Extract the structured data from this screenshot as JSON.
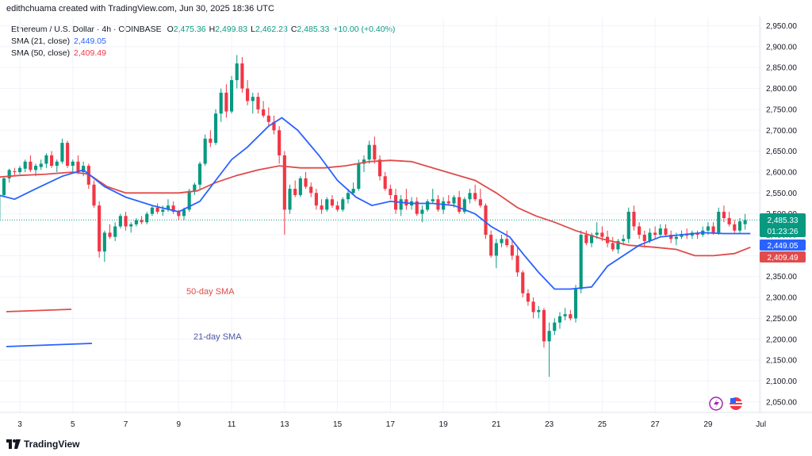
{
  "header": {
    "attribution": "edithchuama created with TradingView.com, Jun 30, 2025 18:36 UTC"
  },
  "legend": {
    "symbol": "Ethereum / U.S. Dollar · 4h · COINBASE",
    "ohlc": [
      {
        "label": "O",
        "value": "2,475.36"
      },
      {
        "label": "H",
        "value": "2,499.83"
      },
      {
        "label": "L",
        "value": "2,462.23"
      },
      {
        "label": "C",
        "value": "2,485.33"
      }
    ],
    "change": "+10.00 (+0.40%)",
    "sma21": {
      "label": "SMA (21, close)",
      "value": "2,449.05"
    },
    "sma50": {
      "label": "SMA (50, close)",
      "value": "2,409.49"
    }
  },
  "annotations": {
    "sma50_text": "50-day SMA",
    "sma21_text": "21-day SMA"
  },
  "price_tags": {
    "last_price": "2,485.33",
    "countdown": "01:23:26",
    "sma21": "2,449.05",
    "sma50": "2,409.49"
  },
  "footer": {
    "brand": "TradingView"
  },
  "colors": {
    "up": "#089981",
    "down": "#f23645",
    "sma21": "#2962ff",
    "sma50": "#e04b4b"
  },
  "chart_data": {
    "type": "candlestick",
    "title": "Ethereum / U.S. Dollar · 4h · COINBASE",
    "y_ticks": [
      "2,950.00",
      "2,900.00",
      "2,850.00",
      "2,800.00",
      "2,750.00",
      "2,700.00",
      "2,650.00",
      "2,600.00",
      "2,550.00",
      "2,500.00",
      "2,450.00",
      "2,400.00",
      "2,350.00",
      "2,300.00",
      "2,250.00",
      "2,200.00",
      "2,150.00",
      "2,100.00",
      "2,050.00"
    ],
    "ylim": [
      2025,
      2970
    ],
    "x_ticks": [
      "3",
      "5",
      "7",
      "9",
      "11",
      "13",
      "15",
      "17",
      "19",
      "21",
      "23",
      "25",
      "27",
      "29",
      "Jul"
    ],
    "x_tick_days": [
      3,
      5,
      7,
      9,
      11,
      13,
      15,
      17,
      19,
      21,
      23,
      25,
      27,
      29,
      31
    ],
    "x_range_days": [
      2.25,
      30.95
    ],
    "last_price": 2485.33,
    "sma21_anchors": [
      [
        2.2,
        2545
      ],
      [
        2.8,
        2535
      ],
      [
        3.6,
        2560
      ],
      [
        4.6,
        2590
      ],
      [
        5.4,
        2605
      ],
      [
        6.2,
        2565
      ],
      [
        7,
        2540
      ],
      [
        8,
        2520
      ],
      [
        9,
        2505
      ],
      [
        9.8,
        2530
      ],
      [
        10.4,
        2580
      ],
      [
        11,
        2630
      ],
      [
        11.6,
        2660
      ],
      [
        12.4,
        2710
      ],
      [
        12.9,
        2730
      ],
      [
        13.5,
        2700
      ],
      [
        14.3,
        2640
      ],
      [
        15,
        2580
      ],
      [
        15.7,
        2540
      ],
      [
        16.3,
        2520
      ],
      [
        17,
        2530
      ],
      [
        17.8,
        2525
      ],
      [
        18.6,
        2525
      ],
      [
        19.4,
        2520
      ],
      [
        20.2,
        2500
      ],
      [
        20.8,
        2470
      ],
      [
        21.5,
        2445
      ],
      [
        22,
        2405
      ],
      [
        22.6,
        2360
      ],
      [
        23.2,
        2320
      ],
      [
        23.8,
        2320
      ],
      [
        24.6,
        2325
      ],
      [
        25.2,
        2375
      ],
      [
        25.8,
        2400
      ],
      [
        26.4,
        2425
      ],
      [
        27.2,
        2445
      ],
      [
        28,
        2450
      ],
      [
        28.8,
        2455
      ],
      [
        29.6,
        2453
      ],
      [
        30.3,
        2453
      ],
      [
        30.6,
        2453
      ]
    ],
    "sma50_anchors": [
      [
        2.2,
        2588
      ],
      [
        3,
        2592
      ],
      [
        4,
        2595
      ],
      [
        5,
        2600
      ],
      [
        5.6,
        2595
      ],
      [
        6.3,
        2565
      ],
      [
        7,
        2550
      ],
      [
        8,
        2550
      ],
      [
        9,
        2550
      ],
      [
        9.7,
        2555
      ],
      [
        10.4,
        2575
      ],
      [
        11.2,
        2592
      ],
      [
        12,
        2605
      ],
      [
        12.8,
        2615
      ],
      [
        13.6,
        2610
      ],
      [
        14.5,
        2610
      ],
      [
        15.3,
        2615
      ],
      [
        16.2,
        2625
      ],
      [
        17,
        2628
      ],
      [
        17.8,
        2625
      ],
      [
        18.6,
        2610
      ],
      [
        19.4,
        2595
      ],
      [
        20.2,
        2580
      ],
      [
        21,
        2550
      ],
      [
        21.8,
        2515
      ],
      [
        22.5,
        2495
      ],
      [
        23.2,
        2480
      ],
      [
        24,
        2460
      ],
      [
        25,
        2440
      ],
      [
        26,
        2425
      ],
      [
        27,
        2420
      ],
      [
        27.8,
        2415
      ],
      [
        28.5,
        2400
      ],
      [
        29.2,
        2400
      ],
      [
        30,
        2405
      ],
      [
        30.6,
        2420
      ]
    ],
    "candles": [
      [
        2.2,
        2488,
        2548,
        2480,
        2545
      ],
      [
        2.4,
        2545,
        2590,
        2540,
        2585
      ],
      [
        2.6,
        2585,
        2608,
        2575,
        2605
      ],
      [
        2.8,
        2602,
        2610,
        2590,
        2600
      ],
      [
        3,
        2600,
        2615,
        2595,
        2610
      ],
      [
        3.2,
        2608,
        2630,
        2600,
        2625
      ],
      [
        3.4,
        2625,
        2640,
        2600,
        2605
      ],
      [
        3.6,
        2605,
        2620,
        2590,
        2615
      ],
      [
        3.8,
        2612,
        2630,
        2605,
        2620
      ],
      [
        4,
        2620,
        2645,
        2610,
        2640
      ],
      [
        4.2,
        2640,
        2650,
        2610,
        2615
      ],
      [
        4.4,
        2615,
        2630,
        2600,
        2625
      ],
      [
        4.6,
        2625,
        2680,
        2620,
        2670
      ],
      [
        4.8,
        2670,
        2675,
        2610,
        2615
      ],
      [
        5,
        2615,
        2630,
        2600,
        2625
      ],
      [
        5.2,
        2625,
        2640,
        2595,
        2600
      ],
      [
        5.4,
        2600,
        2625,
        2590,
        2615
      ],
      [
        5.6,
        2615,
        2620,
        2560,
        2570
      ],
      [
        5.8,
        2570,
        2580,
        2515,
        2520
      ],
      [
        6,
        2520,
        2530,
        2395,
        2410
      ],
      [
        6.2,
        2410,
        2460,
        2385,
        2455
      ],
      [
        6.4,
        2455,
        2475,
        2440,
        2445
      ],
      [
        6.6,
        2445,
        2480,
        2435,
        2470
      ],
      [
        6.8,
        2470,
        2500,
        2465,
        2495
      ],
      [
        7,
        2495,
        2505,
        2460,
        2470
      ],
      [
        7.2,
        2470,
        2480,
        2455,
        2475
      ],
      [
        7.4,
        2475,
        2490,
        2470,
        2485
      ],
      [
        7.6,
        2485,
        2495,
        2475,
        2480
      ],
      [
        7.8,
        2480,
        2505,
        2475,
        2500
      ],
      [
        8,
        2500,
        2520,
        2495,
        2515
      ],
      [
        8.2,
        2515,
        2525,
        2500,
        2505
      ],
      [
        8.4,
        2505,
        2520,
        2495,
        2510
      ],
      [
        8.6,
        2510,
        2535,
        2505,
        2520
      ],
      [
        8.8,
        2520,
        2530,
        2500,
        2505
      ],
      [
        9,
        2505,
        2510,
        2485,
        2495
      ],
      [
        9.2,
        2495,
        2515,
        2485,
        2510
      ],
      [
        9.4,
        2510,
        2560,
        2505,
        2555
      ],
      [
        9.6,
        2555,
        2575,
        2545,
        2570
      ],
      [
        9.8,
        2570,
        2625,
        2560,
        2620
      ],
      [
        10,
        2620,
        2690,
        2615,
        2680
      ],
      [
        10.2,
        2680,
        2700,
        2660,
        2670
      ],
      [
        10.4,
        2670,
        2750,
        2665,
        2740
      ],
      [
        10.6,
        2740,
        2800,
        2720,
        2790
      ],
      [
        10.8,
        2790,
        2810,
        2730,
        2745
      ],
      [
        11,
        2745,
        2830,
        2740,
        2820
      ],
      [
        11.2,
        2820,
        2880,
        2800,
        2860
      ],
      [
        11.4,
        2860,
        2875,
        2790,
        2800
      ],
      [
        11.6,
        2800,
        2820,
        2760,
        2770
      ],
      [
        11.8,
        2770,
        2790,
        2740,
        2780
      ],
      [
        12,
        2780,
        2790,
        2740,
        2750
      ],
      [
        12.2,
        2750,
        2770,
        2730,
        2735
      ],
      [
        12.4,
        2735,
        2755,
        2710,
        2720
      ],
      [
        12.6,
        2720,
        2735,
        2690,
        2700
      ],
      [
        12.8,
        2700,
        2710,
        2620,
        2640
      ],
      [
        13,
        2640,
        2650,
        2450,
        2510
      ],
      [
        13.2,
        2510,
        2570,
        2500,
        2560
      ],
      [
        13.4,
        2560,
        2580,
        2540,
        2545
      ],
      [
        13.6,
        2545,
        2590,
        2540,
        2585
      ],
      [
        13.8,
        2585,
        2600,
        2560,
        2565
      ],
      [
        14,
        2565,
        2575,
        2540,
        2550
      ],
      [
        14.2,
        2550,
        2560,
        2510,
        2520
      ],
      [
        14.4,
        2520,
        2535,
        2500,
        2510
      ],
      [
        14.6,
        2510,
        2540,
        2505,
        2535
      ],
      [
        14.8,
        2535,
        2545,
        2515,
        2520
      ],
      [
        15,
        2520,
        2530,
        2505,
        2510
      ],
      [
        15.2,
        2510,
        2540,
        2505,
        2535
      ],
      [
        15.4,
        2535,
        2560,
        2525,
        2550
      ],
      [
        15.6,
        2550,
        2575,
        2545,
        2560
      ],
      [
        15.8,
        2560,
        2630,
        2555,
        2620
      ],
      [
        16,
        2620,
        2640,
        2600,
        2630
      ],
      [
        16.2,
        2630,
        2675,
        2620,
        2665
      ],
      [
        16.4,
        2665,
        2685,
        2620,
        2630
      ],
      [
        16.6,
        2630,
        2640,
        2580,
        2590
      ],
      [
        16.8,
        2590,
        2600,
        2555,
        2560
      ],
      [
        17,
        2560,
        2570,
        2535,
        2545
      ],
      [
        17.2,
        2545,
        2560,
        2500,
        2510
      ],
      [
        17.4,
        2510,
        2545,
        2495,
        2535
      ],
      [
        17.6,
        2535,
        2560,
        2510,
        2520
      ],
      [
        17.8,
        2520,
        2540,
        2510,
        2530
      ],
      [
        18,
        2530,
        2540,
        2495,
        2500
      ],
      [
        18.2,
        2500,
        2520,
        2480,
        2510
      ],
      [
        18.4,
        2510,
        2535,
        2505,
        2530
      ],
      [
        18.6,
        2530,
        2560,
        2525,
        2535
      ],
      [
        18.8,
        2535,
        2545,
        2505,
        2510
      ],
      [
        19,
        2510,
        2540,
        2500,
        2530
      ],
      [
        19.2,
        2530,
        2545,
        2520,
        2525
      ],
      [
        19.4,
        2525,
        2545,
        2515,
        2540
      ],
      [
        19.6,
        2540,
        2555,
        2500,
        2505
      ],
      [
        19.8,
        2505,
        2540,
        2500,
        2535
      ],
      [
        20,
        2535,
        2560,
        2525,
        2550
      ],
      [
        20.2,
        2550,
        2570,
        2530,
        2535
      ],
      [
        20.4,
        2535,
        2560,
        2515,
        2520
      ],
      [
        20.6,
        2520,
        2525,
        2440,
        2450
      ],
      [
        20.8,
        2450,
        2460,
        2395,
        2400
      ],
      [
        21,
        2400,
        2440,
        2370,
        2430
      ],
      [
        21.2,
        2430,
        2450,
        2420,
        2440
      ],
      [
        21.4,
        2440,
        2460,
        2420,
        2425
      ],
      [
        21.6,
        2425,
        2440,
        2390,
        2400
      ],
      [
        21.8,
        2400,
        2420,
        2350,
        2360
      ],
      [
        22,
        2360,
        2365,
        2300,
        2310
      ],
      [
        22.2,
        2310,
        2320,
        2280,
        2290
      ],
      [
        22.4,
        2290,
        2300,
        2250,
        2265
      ],
      [
        22.6,
        2265,
        2280,
        2250,
        2270
      ],
      [
        22.8,
        2270,
        2275,
        2180,
        2195
      ],
      [
        23,
        2195,
        2240,
        2110,
        2220
      ],
      [
        23.2,
        2220,
        2250,
        2210,
        2240
      ],
      [
        23.4,
        2240,
        2265,
        2225,
        2255
      ],
      [
        23.6,
        2255,
        2275,
        2245,
        2260
      ],
      [
        23.8,
        2260,
        2270,
        2245,
        2250
      ],
      [
        24,
        2250,
        2330,
        2240,
        2320
      ],
      [
        24.2,
        2320,
        2460,
        2310,
        2450
      ],
      [
        24.4,
        2450,
        2460,
        2425,
        2430
      ],
      [
        24.6,
        2430,
        2455,
        2420,
        2450
      ],
      [
        24.8,
        2450,
        2480,
        2440,
        2455
      ],
      [
        25,
        2455,
        2470,
        2435,
        2445
      ],
      [
        25.2,
        2445,
        2460,
        2420,
        2430
      ],
      [
        25.4,
        2430,
        2445,
        2410,
        2415
      ],
      [
        25.6,
        2415,
        2440,
        2405,
        2435
      ],
      [
        25.8,
        2435,
        2450,
        2425,
        2440
      ],
      [
        26,
        2440,
        2515,
        2430,
        2505
      ],
      [
        26.2,
        2505,
        2520,
        2460,
        2470
      ],
      [
        26.4,
        2470,
        2480,
        2440,
        2450
      ],
      [
        26.6,
        2450,
        2460,
        2420,
        2435
      ],
      [
        26.8,
        2435,
        2465,
        2430,
        2455
      ],
      [
        27,
        2455,
        2470,
        2440,
        2450
      ],
      [
        27.2,
        2450,
        2475,
        2445,
        2465
      ],
      [
        27.4,
        2465,
        2475,
        2445,
        2450
      ],
      [
        27.6,
        2450,
        2460,
        2430,
        2440
      ],
      [
        27.8,
        2440,
        2455,
        2425,
        2445
      ],
      [
        28,
        2445,
        2460,
        2440,
        2452
      ],
      [
        28.2,
        2452,
        2465,
        2440,
        2448
      ],
      [
        28.4,
        2448,
        2460,
        2440,
        2455
      ],
      [
        28.6,
        2455,
        2460,
        2440,
        2450
      ],
      [
        28.8,
        2450,
        2470,
        2445,
        2460
      ],
      [
        29,
        2460,
        2480,
        2450,
        2470
      ],
      [
        29.2,
        2470,
        2480,
        2450,
        2455
      ],
      [
        29.4,
        2455,
        2515,
        2450,
        2505
      ],
      [
        29.6,
        2505,
        2520,
        2480,
        2490
      ],
      [
        29.8,
        2490,
        2505,
        2470,
        2475
      ],
      [
        30,
        2475,
        2485,
        2455,
        2460
      ],
      [
        30.2,
        2460,
        2490,
        2455,
        2482
      ],
      [
        30.4,
        2475.36,
        2499.83,
        2462.23,
        2485.33
      ]
    ]
  }
}
